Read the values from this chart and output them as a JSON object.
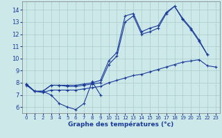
{
  "title": "Graphe des températures (°c)",
  "background_color": "#cce8e8",
  "grid_color": "#aacccc",
  "line_color": "#1a3a9a",
  "x_ticks": [
    0,
    1,
    2,
    3,
    4,
    5,
    6,
    7,
    8,
    9,
    10,
    11,
    12,
    13,
    14,
    15,
    16,
    17,
    18,
    19,
    20,
    21,
    22,
    23
  ],
  "y_ticks": [
    6,
    7,
    8,
    9,
    10,
    11,
    12,
    13,
    14
  ],
  "ylim": [
    5.5,
    14.7
  ],
  "xlim": [
    -0.5,
    23.5
  ],
  "series": [
    {
      "x": [
        0,
        1,
        2,
        3,
        4,
        5,
        6,
        7,
        8,
        9
      ],
      "y": [
        7.9,
        7.3,
        7.3,
        7.0,
        6.3,
        6.0,
        5.8,
        6.3,
        8.1,
        7.0
      ]
    },
    {
      "x": [
        0,
        1,
        2,
        3,
        4,
        5,
        6,
        7,
        8,
        9,
        10,
        11,
        12,
        13,
        14,
        15,
        16,
        17,
        18,
        19,
        20,
        21,
        22
      ],
      "y": [
        7.9,
        7.3,
        7.3,
        7.8,
        7.8,
        7.8,
        7.8,
        7.9,
        8.0,
        8.2,
        9.8,
        10.5,
        13.5,
        13.7,
        12.2,
        12.5,
        12.7,
        13.8,
        14.3,
        13.3,
        12.5,
        11.5,
        10.3
      ]
    },
    {
      "x": [
        0,
        1,
        2,
        3,
        4,
        5,
        6,
        7,
        8,
        9,
        10,
        11,
        12,
        13,
        14,
        15,
        16,
        17,
        18,
        19,
        20,
        21,
        22
      ],
      "y": [
        7.9,
        7.3,
        7.3,
        7.8,
        7.8,
        7.7,
        7.7,
        7.8,
        7.9,
        8.0,
        9.5,
        10.2,
        13.0,
        13.5,
        12.0,
        12.2,
        12.5,
        13.7,
        14.3,
        13.2,
        12.4,
        11.4,
        10.3
      ]
    },
    {
      "x": [
        0,
        1,
        2,
        3,
        4,
        5,
        6,
        7,
        8,
        9,
        10,
        11,
        12,
        13,
        14,
        15,
        16,
        17,
        18,
        19,
        20,
        21,
        22,
        23
      ],
      "y": [
        7.8,
        7.3,
        7.2,
        7.4,
        7.4,
        7.4,
        7.4,
        7.5,
        7.6,
        7.7,
        8.0,
        8.2,
        8.4,
        8.6,
        8.7,
        8.9,
        9.1,
        9.3,
        9.5,
        9.7,
        9.8,
        9.9,
        9.4,
        9.3
      ]
    }
  ]
}
